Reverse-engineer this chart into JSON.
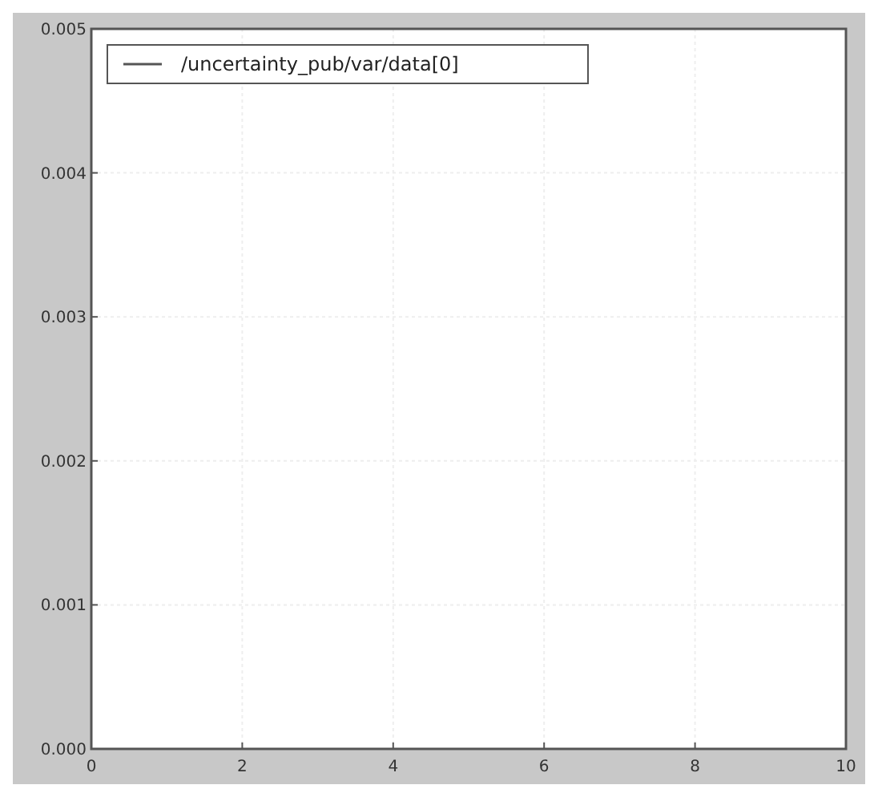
{
  "chart_data": {
    "type": "line",
    "categories": [
      "0",
      "2",
      "4",
      "6",
      "8",
      "10"
    ],
    "ylim": [
      0,
      0.005
    ],
    "yticks": [
      {
        "value": 0,
        "label": "0.000"
      },
      {
        "value": 0.001,
        "label": "0.001"
      },
      {
        "value": 0.002,
        "label": "0.002"
      },
      {
        "value": 0.003,
        "label": "0.003"
      },
      {
        "value": 0.004,
        "label": "0.004"
      },
      {
        "value": 0.005,
        "label": "0.005"
      }
    ],
    "grid": true,
    "legend": "top left",
    "series": [
      {
        "name": "/uncertainty_pub/var/data[0]",
        "color": "#555555",
        "values": [
          null,
          null,
          null,
          null,
          null,
          null
        ]
      }
    ]
  }
}
